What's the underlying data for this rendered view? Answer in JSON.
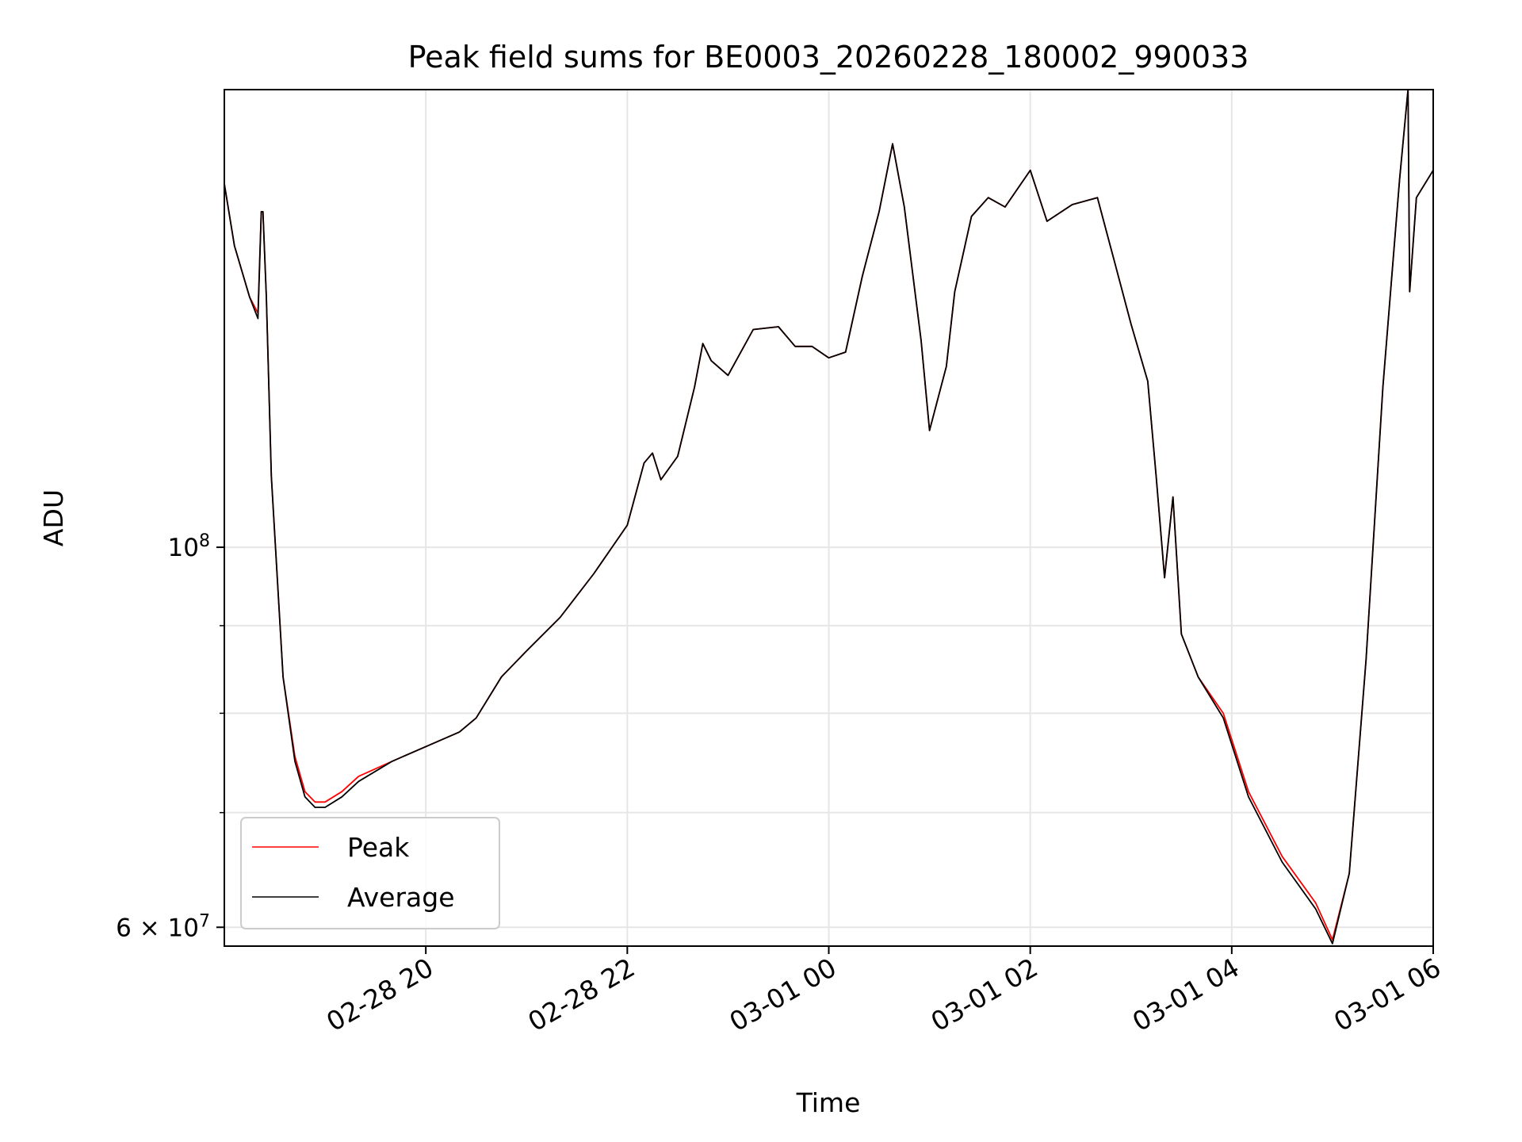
{
  "chart_data": {
    "type": "line",
    "title": "Peak field sums for BE0003_20260228_180002_990033",
    "xlabel": "Time",
    "ylabel": "ADU",
    "y_scale": "log",
    "xlim": [
      "2026-02-28 18:00",
      "2026-03-01 06:00"
    ],
    "ylim": [
      58500000,
      185000000
    ],
    "grid": true,
    "legend": "lower-left",
    "x_ticks": [
      {
        "value": "2026-02-28 20:00",
        "label": "02-28 20"
      },
      {
        "value": "2026-02-28 22:00",
        "label": "02-28 22"
      },
      {
        "value": "2026-03-01 00:00",
        "label": "03-01 00"
      },
      {
        "value": "2026-03-01 02:00",
        "label": "03-01 02"
      },
      {
        "value": "2026-03-01 04:00",
        "label": "03-01 04"
      },
      {
        "value": "2026-03-01 06:00",
        "label": "03-01 06"
      }
    ],
    "y_major_ticks": [
      {
        "value": 100000000,
        "label_base": "10",
        "label_exp": "8"
      },
      {
        "value": 60000000,
        "label_base": "6 × 10",
        "label_exp": "7"
      }
    ],
    "y_minor_ticks": [
      70000000,
      80000000,
      90000000
    ],
    "x": [
      "2026-02-28 18:00",
      "2026-02-28 18:06",
      "2026-02-28 18:15",
      "2026-02-28 18:20",
      "2026-02-28 18:22",
      "2026-02-28 18:23",
      "2026-02-28 18:25",
      "2026-02-28 18:28",
      "2026-02-28 18:35",
      "2026-02-28 18:42",
      "2026-02-28 18:48",
      "2026-02-28 18:54",
      "2026-02-28 19:00",
      "2026-02-28 19:10",
      "2026-02-28 19:20",
      "2026-02-28 19:40",
      "2026-02-28 20:00",
      "2026-02-28 20:20",
      "2026-02-28 20:30",
      "2026-02-28 20:45",
      "2026-02-28 21:00",
      "2026-02-28 21:20",
      "2026-02-28 21:40",
      "2026-02-28 22:00",
      "2026-02-28 22:10",
      "2026-02-28 22:15",
      "2026-02-28 22:20",
      "2026-02-28 22:30",
      "2026-02-28 22:40",
      "2026-02-28 22:45",
      "2026-02-28 22:50",
      "2026-02-28 23:00",
      "2026-02-28 23:15",
      "2026-02-28 23:30",
      "2026-02-28 23:40",
      "2026-02-28 23:50",
      "2026-03-01 00:00",
      "2026-03-01 00:10",
      "2026-03-01 00:20",
      "2026-03-01 00:30",
      "2026-03-01 00:38",
      "2026-03-01 00:45",
      "2026-03-01 00:55",
      "2026-03-01 01:00",
      "2026-03-01 01:10",
      "2026-03-01 01:15",
      "2026-03-01 01:25",
      "2026-03-01 01:35",
      "2026-03-01 01:45",
      "2026-03-01 02:00",
      "2026-03-01 02:10",
      "2026-03-01 02:25",
      "2026-03-01 02:40",
      "2026-03-01 02:50",
      "2026-03-01 03:00",
      "2026-03-01 03:10",
      "2026-03-01 03:15",
      "2026-03-01 03:20",
      "2026-03-01 03:25",
      "2026-03-01 03:30",
      "2026-03-01 03:40",
      "2026-03-01 03:55",
      "2026-03-01 04:10",
      "2026-03-01 04:30",
      "2026-03-01 04:50",
      "2026-03-01 05:00",
      "2026-03-01 05:10",
      "2026-03-01 05:20",
      "2026-03-01 05:30",
      "2026-03-01 05:40",
      "2026-03-01 05:45",
      "2026-03-01 05:46",
      "2026-03-01 05:50",
      "2026-03-01 06:00"
    ],
    "series": [
      {
        "name": "Peak",
        "color": "#ff0000",
        "values": [
          163000000,
          150000000,
          140000000,
          137000000,
          157000000,
          157000000,
          140000000,
          110000000,
          84000000,
          75500000,
          72000000,
          71000000,
          71000000,
          72000000,
          73500000,
          75000000,
          76500000,
          78000000,
          79500000,
          84000000,
          87000000,
          91000000,
          96500000,
          103000000,
          112000000,
          113500000,
          109500000,
          113000000,
          124000000,
          131500000,
          128500000,
          126000000,
          134000000,
          134500000,
          131000000,
          131000000,
          129000000,
          130000000,
          144000000,
          157000000,
          172000000,
          158000000,
          132000000,
          117000000,
          127500000,
          141000000,
          156000000,
          160000000,
          158000000,
          166000000,
          155000000,
          158500000,
          160000000,
          147000000,
          135000000,
          125000000,
          110000000,
          96000000,
          107000000,
          89000000,
          84000000,
          80000000,
          72000000,
          66000000,
          62000000,
          59000000,
          64500000,
          86000000,
          124000000,
          164000000,
          185000000,
          141000000,
          160000000,
          166000000
        ]
      },
      {
        "name": "Average",
        "color": "#000000",
        "values": [
          163000000,
          150000000,
          140000000,
          136000000,
          157000000,
          157000000,
          140000000,
          110000000,
          84000000,
          75000000,
          71500000,
          70500000,
          70500000,
          71500000,
          73000000,
          75000000,
          76500000,
          78000000,
          79500000,
          84000000,
          87000000,
          91000000,
          96500000,
          103000000,
          112000000,
          113500000,
          109500000,
          113000000,
          124000000,
          131500000,
          128500000,
          126000000,
          134000000,
          134500000,
          131000000,
          131000000,
          129000000,
          130000000,
          144000000,
          157000000,
          172000000,
          158000000,
          132000000,
          117000000,
          127500000,
          141000000,
          156000000,
          160000000,
          158000000,
          166000000,
          155000000,
          158500000,
          160000000,
          147000000,
          135000000,
          125000000,
          110000000,
          96000000,
          107000000,
          89000000,
          84000000,
          79500000,
          71500000,
          65500000,
          61500000,
          58700000,
          64500000,
          86000000,
          124000000,
          164000000,
          185000000,
          141000000,
          160000000,
          166000000
        ]
      }
    ]
  }
}
